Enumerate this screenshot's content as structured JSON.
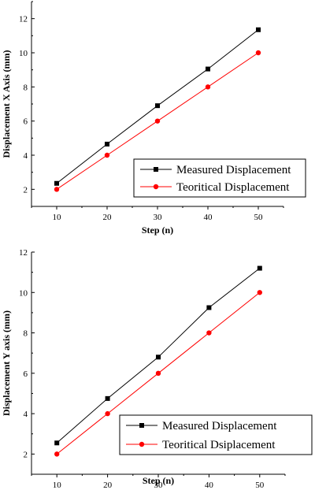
{
  "chart_data": [
    {
      "type": "line",
      "title": "",
      "xlabel": "Step (n)",
      "ylabel": "Displacement X Axis (mm)",
      "x": [
        10,
        20,
        30,
        40,
        50
      ],
      "xlim": [
        5,
        55
      ],
      "ylim": [
        1,
        13
      ],
      "xticks": [
        "10",
        "20",
        "30",
        "40",
        "50"
      ],
      "yticks": [
        "2",
        "4",
        "6",
        "8",
        "10",
        "12"
      ],
      "grid": false,
      "legend_position": "bottom-right",
      "series": [
        {
          "name": "Measured Displacement",
          "values": [
            2.35,
            4.65,
            6.9,
            9.05,
            11.35
          ],
          "color": "#000000",
          "marker": "square"
        },
        {
          "name": "Teoritical Displacement",
          "values": [
            2.0,
            4.0,
            6.0,
            8.0,
            10.0
          ],
          "color": "#ff0000",
          "marker": "circle"
        }
      ]
    },
    {
      "type": "line",
      "title": "",
      "xlabel": "Step (n)",
      "ylabel": "Displacement Y axis (mm)",
      "x": [
        10,
        20,
        30,
        40,
        50
      ],
      "xlim": [
        5,
        55
      ],
      "ylim": [
        1,
        12
      ],
      "xticks": [
        "10",
        "20",
        "30",
        "40",
        "50"
      ],
      "yticks": [
        "2",
        "4",
        "6",
        "8",
        "10",
        "12"
      ],
      "grid": false,
      "legend_position": "bottom-right",
      "series": [
        {
          "name": "Measured Displacement",
          "values": [
            2.55,
            4.75,
            6.8,
            9.25,
            11.2
          ],
          "color": "#000000",
          "marker": "square"
        },
        {
          "name": "Teoritical Dsiplacement",
          "values": [
            2.0,
            4.0,
            6.0,
            8.0,
            10.0
          ],
          "color": "#ff0000",
          "marker": "circle"
        }
      ]
    }
  ]
}
